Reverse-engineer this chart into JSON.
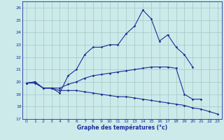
{
  "xlabel": "Graphe des températures (°c)",
  "background_color": "#cceaea",
  "grid_color": "#aacccc",
  "line_color": "#1a2e99",
  "xlim": [
    -0.5,
    23.5
  ],
  "ylim": [
    17,
    26.5
  ],
  "yticks": [
    17,
    18,
    19,
    20,
    21,
    22,
    23,
    24,
    25,
    26
  ],
  "xticks": [
    0,
    1,
    2,
    3,
    4,
    5,
    6,
    7,
    8,
    9,
    10,
    11,
    12,
    13,
    14,
    15,
    16,
    17,
    18,
    19,
    20,
    21,
    22,
    23
  ],
  "series": [
    {
      "x": [
        0,
        1,
        2,
        3,
        4,
        5,
        6,
        7,
        8,
        9,
        10,
        11,
        12,
        13,
        14,
        15,
        16,
        17,
        18,
        19,
        20
      ],
      "y": [
        19.9,
        20.0,
        19.5,
        19.5,
        19.1,
        20.5,
        21.0,
        22.2,
        22.8,
        22.8,
        23.0,
        23.0,
        23.9,
        24.5,
        25.8,
        25.1,
        23.3,
        23.8,
        22.8,
        22.2,
        21.2
      ]
    },
    {
      "x": [
        0,
        1,
        2,
        3,
        4,
        5,
        6,
        7,
        8,
        9,
        10,
        11,
        12,
        13,
        14,
        15,
        16,
        17,
        18,
        19,
        20,
        21
      ],
      "y": [
        19.9,
        20.0,
        19.5,
        19.5,
        19.5,
        19.8,
        20.0,
        20.3,
        20.5,
        20.6,
        20.7,
        20.8,
        20.9,
        21.0,
        21.1,
        21.2,
        21.2,
        21.2,
        21.1,
        19.0,
        18.6,
        18.6
      ]
    },
    {
      "x": [
        0,
        1,
        2,
        3,
        4,
        5,
        6,
        7,
        8,
        9,
        10,
        11,
        12,
        13,
        14,
        15,
        16,
        17,
        18,
        19,
        20,
        21,
        22,
        23
      ],
      "y": [
        19.9,
        19.9,
        19.5,
        19.5,
        19.3,
        19.3,
        19.3,
        19.2,
        19.1,
        19.0,
        18.9,
        18.8,
        18.8,
        18.7,
        18.6,
        18.5,
        18.4,
        18.3,
        18.2,
        18.1,
        17.9,
        17.8,
        17.6,
        17.4
      ]
    }
  ]
}
